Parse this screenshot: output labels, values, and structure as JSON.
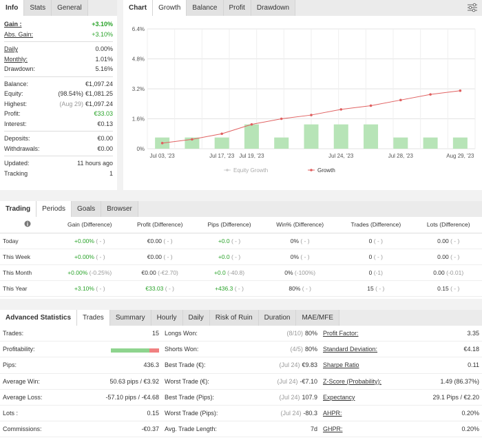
{
  "info": {
    "tabs": [
      "Info",
      "Stats",
      "General"
    ],
    "gain_label": "Gain :",
    "gain_value": "+3.10%",
    "abs_gain_label": "Abs. Gain:",
    "abs_gain_value": "+3.10%",
    "daily_label": "Daily",
    "daily_value": "0.00%",
    "monthly_label": "Monthly:",
    "monthly_value": "1.01%",
    "drawdown_label": "Drawdown:",
    "drawdown_value": "5.16%",
    "balance_label": "Balance:",
    "balance_value": "€1,097.24",
    "equity_label": "Equity:",
    "equity_pre": "(98.54%)",
    "equity_value": "€1,081.25",
    "highest_label": "Highest:",
    "highest_pre": "(Aug 29)",
    "highest_value": "€1,097.24",
    "profit_label": "Profit:",
    "profit_value": "€33.03",
    "interest_label": "Interest:",
    "interest_value": "€0.13",
    "deposits_label": "Deposits:",
    "deposits_value": "€0.00",
    "withdrawals_label": "Withdrawals:",
    "withdrawals_value": "€0.00",
    "updated_label": "Updated:",
    "updated_value": "11 hours ago",
    "tracking_label": "Tracking",
    "tracking_value": "1"
  },
  "chart_tabs": [
    "Chart",
    "Growth",
    "Balance",
    "Profit",
    "Drawdown"
  ],
  "chart_data": {
    "type": "line",
    "y_ticks": [
      "6.4%",
      "4.8%",
      "3.2%",
      "1.6%",
      "0%"
    ],
    "x_ticks": [
      "Jul 03, '23",
      "Jul 17, '23",
      "Jul 19, '23",
      "Jul 24, '23",
      "Jul 28, '23",
      "Aug 29, '23"
    ],
    "ylim": [
      0,
      6.4
    ],
    "series": [
      {
        "name": "Equity Growth",
        "type": "bar",
        "color": "#b7e4b7",
        "values": [
          0.6,
          0.6,
          0.6,
          1.3,
          0.6,
          1.3,
          1.3,
          1.3,
          0.6,
          0.6,
          0.6
        ]
      },
      {
        "name": "Growth",
        "type": "line",
        "color": "#e06060",
        "values": [
          0.3,
          0.5,
          0.8,
          1.3,
          1.6,
          1.8,
          2.1,
          2.3,
          2.6,
          2.9,
          3.1
        ]
      }
    ],
    "legend": [
      "Equity Growth",
      "Growth"
    ]
  },
  "periods": {
    "tabs": [
      "Trading",
      "Periods",
      "Goals",
      "Browser"
    ],
    "headers": [
      "Gain (Difference)",
      "Profit (Difference)",
      "Pips (Difference)",
      "Win% (Difference)",
      "Trades (Difference)",
      "Lots (Difference)"
    ],
    "rows": [
      {
        "label": "Today",
        "gain": "+0.00%",
        "gain_d": "( - )",
        "profit": "€0.00",
        "profit_d": "( - )",
        "pips": "+0.0",
        "pips_d": "( - )",
        "win": "0%",
        "win_d": "( - )",
        "trades": "0",
        "trades_d": "( - )",
        "lots": "0.00",
        "lots_d": "( - )"
      },
      {
        "label": "This Week",
        "gain": "+0.00%",
        "gain_d": "( - )",
        "profit": "€0.00",
        "profit_d": "( - )",
        "pips": "+0.0",
        "pips_d": "( - )",
        "win": "0%",
        "win_d": "( - )",
        "trades": "0",
        "trades_d": "( - )",
        "lots": "0.00",
        "lots_d": "( - )"
      },
      {
        "label": "This Month",
        "gain": "+0.00%",
        "gain_d": "(-0.25%)",
        "profit": "€0.00",
        "profit_d": "(-€2.70)",
        "pips": "+0.0",
        "pips_d": "(-40.8)",
        "win": "0%",
        "win_d": "(-100%)",
        "trades": "0",
        "trades_d": "(-1)",
        "lots": "0.00",
        "lots_d": "(-0.01)"
      },
      {
        "label": "This Year",
        "gain": "+3.10%",
        "gain_d": "( - )",
        "profit": "€33.03",
        "profit_d": "( - )",
        "pips": "+436.3",
        "pips_d": "( - )",
        "win": "80%",
        "win_d": "( - )",
        "trades": "15",
        "trades_d": "( - )",
        "lots": "0.15",
        "lots_d": "( - )"
      }
    ]
  },
  "advanced": {
    "tabs": [
      "Advanced Statistics",
      "Trades",
      "Summary",
      "Hourly",
      "Daily",
      "Risk of Ruin",
      "Duration",
      "MAE/MFE"
    ],
    "col1": [
      {
        "label": "Trades:",
        "value": "15"
      },
      {
        "label": "Profitability:",
        "value": ""
      },
      {
        "label": "Pips:",
        "value": "436.3"
      },
      {
        "label": "Average Win:",
        "value": "50.63 pips / €3.92"
      },
      {
        "label": "Average Loss:",
        "value": "-57.10 pips / -€4.68"
      },
      {
        "label": "Lots :",
        "value": "0.15"
      },
      {
        "label": "Commissions:",
        "value": "-€0.37"
      }
    ],
    "profitability_win_fraction": 0.8,
    "col2": [
      {
        "label": "Longs Won:",
        "pre": "(8/10)",
        "value": "80%"
      },
      {
        "label": "Shorts Won:",
        "pre": "(4/5)",
        "value": "80%"
      },
      {
        "label": "Best Trade (€):",
        "pre": "(Jul 24)",
        "value": "€9.83"
      },
      {
        "label": "Worst Trade (€):",
        "pre": "(Jul 24)",
        "value": "-€7.10"
      },
      {
        "label": "Best Trade (Pips):",
        "pre": "(Jul 24)",
        "value": "107.9"
      },
      {
        "label": "Worst Trade (Pips):",
        "pre": "(Jul 24)",
        "value": "-80.3"
      },
      {
        "label": "Avg. Trade Length:",
        "pre": "",
        "value": "7d"
      }
    ],
    "col3": [
      {
        "label": "Profit Factor:",
        "value": "3.35"
      },
      {
        "label": "Standard Deviation:",
        "value": "€4.18"
      },
      {
        "label": "Sharpe Ratio",
        "value": "0.11"
      },
      {
        "label": "Z-Score (Probability):",
        "value": "1.49 (86.37%)"
      },
      {
        "label": "Expectancy",
        "value": "29.1 Pips / €2.20"
      },
      {
        "label": "AHPR:",
        "value": "0.20%"
      },
      {
        "label": "GHPR:",
        "value": "0.20%"
      }
    ]
  }
}
